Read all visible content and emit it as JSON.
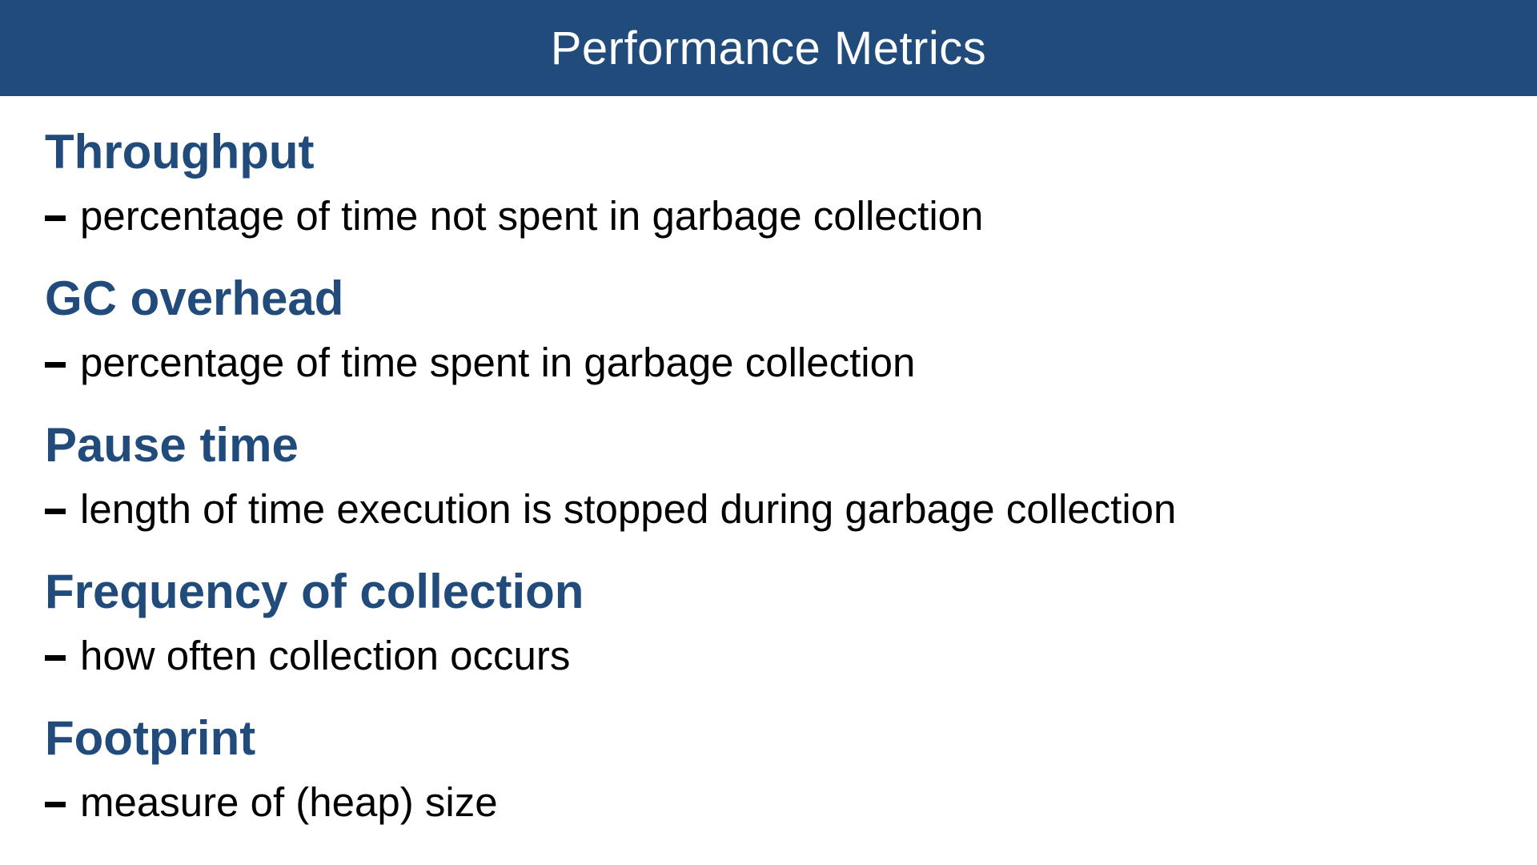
{
  "slide": {
    "title": "Performance Metrics",
    "colors": {
      "header_bg": "#204b7b",
      "heading_text": "#204b7b",
      "body_text": "#000000"
    },
    "metrics": [
      {
        "name": "Throughput",
        "description": "percentage of time not spent in garbage collection"
      },
      {
        "name": "GC overhead",
        "description": "percentage of time spent in garbage collection"
      },
      {
        "name": "Pause time",
        "description": "length of time execution is stopped during garbage collection"
      },
      {
        "name": "Frequency of collection",
        "description": "how often collection occurs"
      },
      {
        "name": "Footprint",
        "description": "measure of (heap) size"
      }
    ]
  }
}
